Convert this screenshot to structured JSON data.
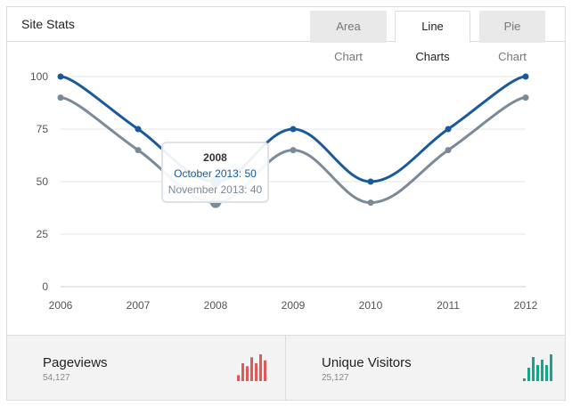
{
  "widget": {
    "title": "Site Stats",
    "tabs": [
      {
        "label": "Area Chart",
        "active": false
      },
      {
        "label": "Line Charts",
        "active": true
      },
      {
        "label": "Pie Chart",
        "active": false
      }
    ]
  },
  "chart_data": {
    "type": "line",
    "x": [
      "2006",
      "2007",
      "2008",
      "2009",
      "2010",
      "2011",
      "2012"
    ],
    "yticks": [
      0,
      25,
      50,
      75,
      100
    ],
    "ylim": [
      0,
      100
    ],
    "grid": true,
    "series": [
      {
        "values": [
          100,
          75,
          50,
          75,
          50,
          75,
          100
        ],
        "color": "#1a5a9a"
      },
      {
        "values": [
          90,
          65,
          40,
          65,
          40,
          65,
          90
        ],
        "color": "#7b8a99"
      }
    ]
  },
  "tooltip": {
    "title": "2008",
    "line1": "October 2013: 50",
    "line2": "November 2013: 40"
  },
  "stats": [
    {
      "label": "Pageviews",
      "value": "54,127",
      "spark_color": "#e05a5a",
      "spark": [
        2,
        6,
        5,
        8,
        6,
        9,
        7
      ]
    },
    {
      "label": "Unique Visitors",
      "value": "25,127",
      "spark_color": "#17a589",
      "spark": [
        1,
        5,
        9,
        6,
        8,
        6,
        10
      ]
    }
  ]
}
